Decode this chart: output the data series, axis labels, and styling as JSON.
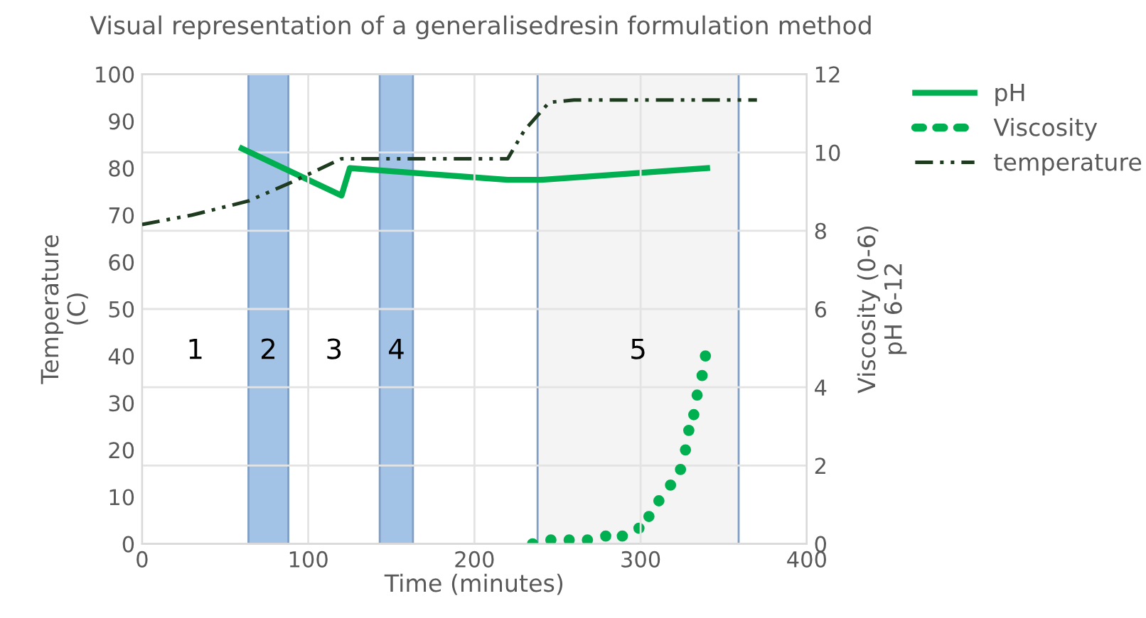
{
  "chart_data": {
    "type": "line",
    "title": "Visual representation of a generalisedresin formulation method",
    "xlabel": "Time (minutes)",
    "ylabel": "Temperature\n(C)",
    "y2label": "Viscosity (0-6)\npH 6-12",
    "xlim": [
      0,
      400
    ],
    "xticks": [
      0,
      100,
      200,
      300,
      400
    ],
    "ylim": [
      0,
      100
    ],
    "yticks": [
      0,
      10,
      20,
      30,
      40,
      50,
      60,
      70,
      80,
      90,
      100
    ],
    "y2lim": [
      0,
      12
    ],
    "y2ticks": [
      0,
      2,
      4,
      6,
      8,
      10,
      12
    ],
    "grid": true,
    "legend": "right",
    "series": [
      {
        "name": "pH",
        "axis": "y2",
        "color": "#00b050",
        "line_style": "solid",
        "marker": "none",
        "x": [
          60,
          120,
          125,
          220,
          240,
          340
        ],
        "values": [
          10.1,
          8.9,
          9.6,
          9.3,
          9.3,
          9.6
        ]
      },
      {
        "name": "Viscosity",
        "type": "scatter",
        "axis": "y2",
        "color": "#00b050",
        "marker": "circle",
        "x": [
          235,
          246,
          257,
          268,
          279,
          289,
          299,
          305,
          311,
          318,
          324,
          327,
          329,
          332,
          334,
          337,
          339
        ],
        "values": [
          0,
          0.1,
          0.1,
          0.1,
          0.2,
          0.2,
          0.4,
          0.7,
          1.1,
          1.5,
          1.9,
          2.4,
          2.9,
          3.3,
          3.8,
          4.3,
          4.8
        ]
      },
      {
        "name": "temperature",
        "axis": "y",
        "color": "#1f3b1f",
        "line_style": "dashed",
        "marker": "none",
        "x": [
          0,
          30,
          64,
          90,
          120,
          220,
          230,
          245,
          260,
          370
        ],
        "values": [
          68,
          70,
          73,
          77,
          82,
          82,
          88,
          94,
          94.5,
          94.5
        ]
      }
    ],
    "bands": [
      {
        "axis": "x",
        "from": 64,
        "to": 88,
        "label": "2",
        "color": "#a3c3e6"
      },
      {
        "axis": "x",
        "from": 143,
        "to": 163,
        "label": "4",
        "color": "#a3c3e6"
      },
      {
        "axis": "x",
        "from": 238,
        "to": 359,
        "label": "5",
        "color": "#f4f4f4"
      }
    ],
    "annotations": [
      "1",
      "3"
    ]
  }
}
